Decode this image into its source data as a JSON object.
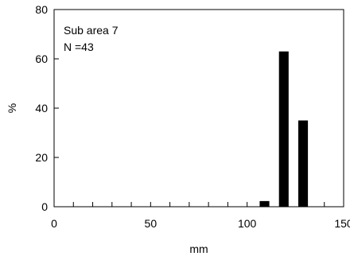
{
  "chart_data": {
    "type": "bar",
    "x": [
      110,
      120,
      130
    ],
    "values": [
      2.3,
      63,
      35
    ],
    "bar_width": 5,
    "xlim": [
      0,
      150
    ],
    "ylim": [
      0,
      80
    ],
    "xticks": [
      0,
      50,
      100,
      150
    ],
    "xminor_step": 10,
    "yticks": [
      0,
      20,
      40,
      60,
      80
    ],
    "xlabel": "mm",
    "ylabel": "%",
    "annotations": [
      "Sub area 7",
      "N =43"
    ],
    "grid": false,
    "legend": "none",
    "colors": {
      "bar": "#000000",
      "axis": "#000000"
    }
  }
}
